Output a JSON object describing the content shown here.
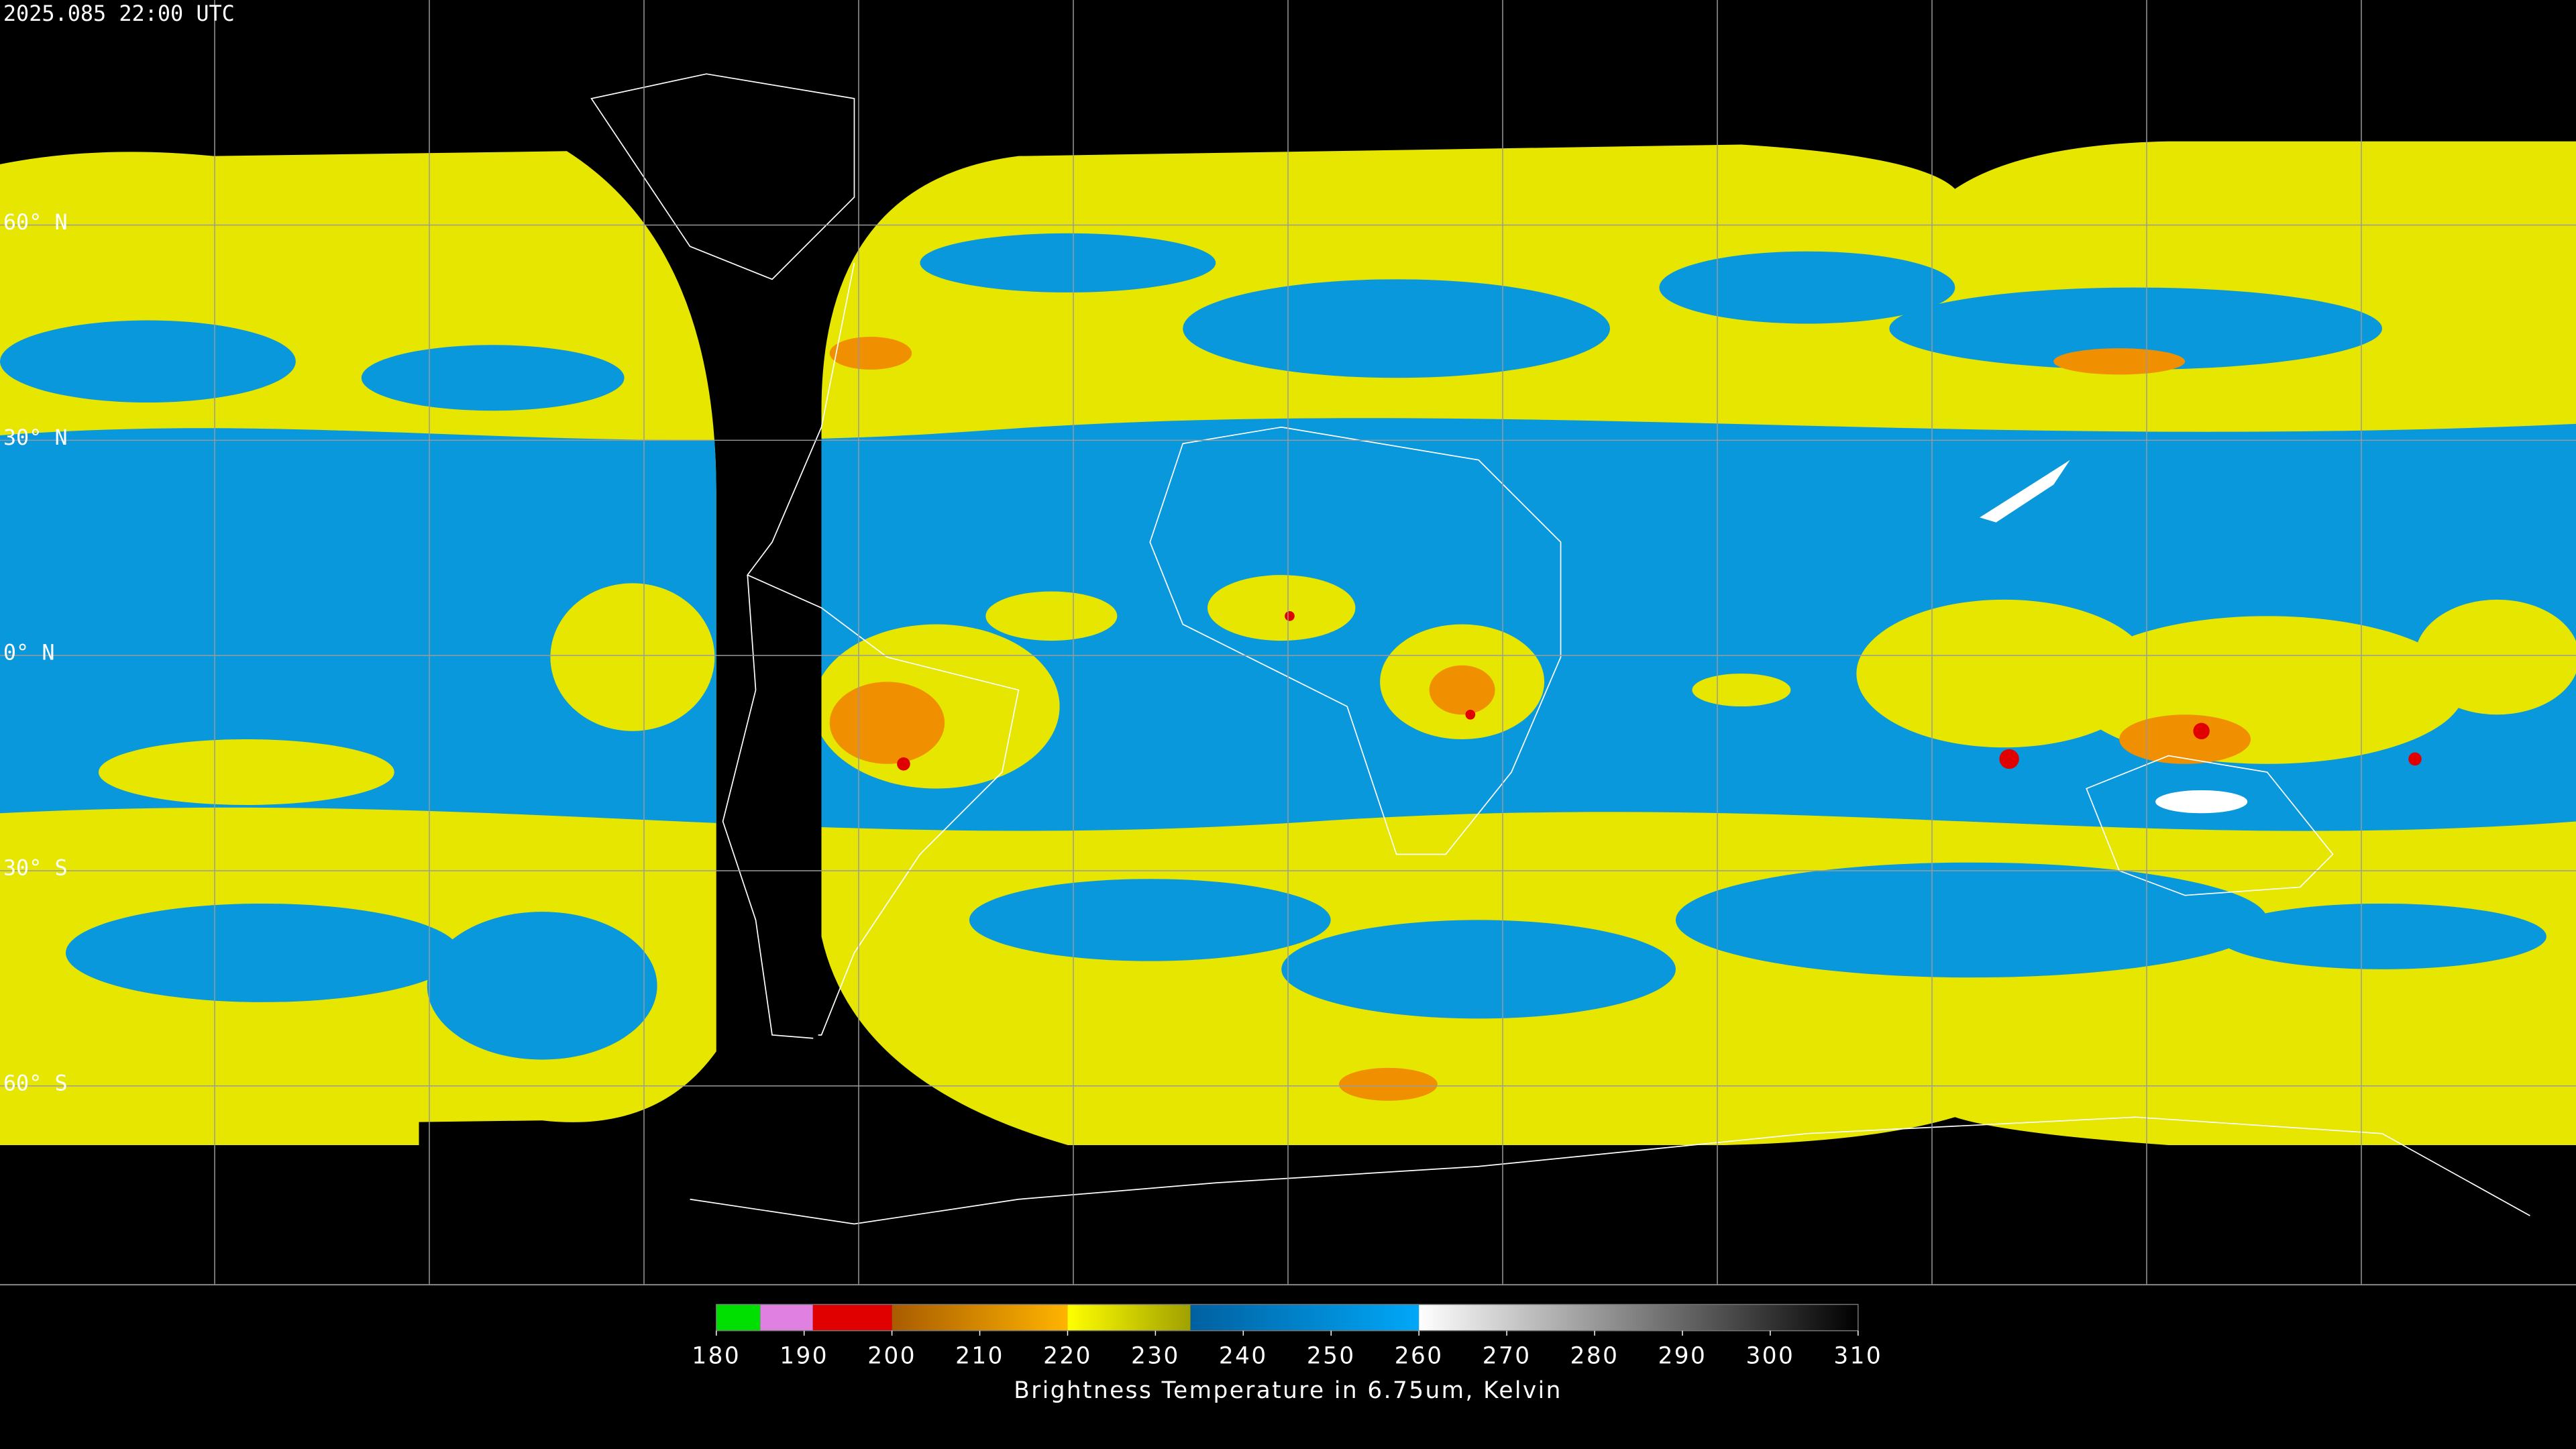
{
  "timestamp": "2025.085 22:00 UTC",
  "grid": {
    "lat_lines": [
      {
        "value": 60,
        "label": "60° N"
      },
      {
        "value": 30,
        "label": "30° N"
      },
      {
        "value": 0,
        "label": "0° N"
      },
      {
        "value": -30,
        "label": "30° S"
      },
      {
        "value": -60,
        "label": "60° S"
      }
    ]
  },
  "colorbar": {
    "label": "Brightness Temperature in 6.75um, Kelvin",
    "lim": [
      180,
      310
    ],
    "ticks": [
      180,
      190,
      200,
      210,
      220,
      230,
      240,
      250,
      260,
      270,
      280,
      290,
      300,
      310
    ],
    "segments": [
      {
        "from": 180,
        "to": 185,
        "colors": [
          "#00e000",
          "#00e000"
        ]
      },
      {
        "from": 185,
        "to": 191,
        "colors": [
          "#e080e0",
          "#e080e0"
        ]
      },
      {
        "from": 191,
        "to": 200,
        "colors": [
          "#e00000",
          "#e00000"
        ]
      },
      {
        "from": 200,
        "to": 220,
        "colors": [
          "#a85c00",
          "#ffb400"
        ]
      },
      {
        "from": 220,
        "to": 234,
        "colors": [
          "#ffff00",
          "#a0a000"
        ]
      },
      {
        "from": 234,
        "to": 260,
        "colors": [
          "#0060a0",
          "#00a8f8"
        ]
      },
      {
        "from": 260,
        "to": 310,
        "colors": [
          "#ffffff",
          "#000000"
        ]
      }
    ]
  }
}
